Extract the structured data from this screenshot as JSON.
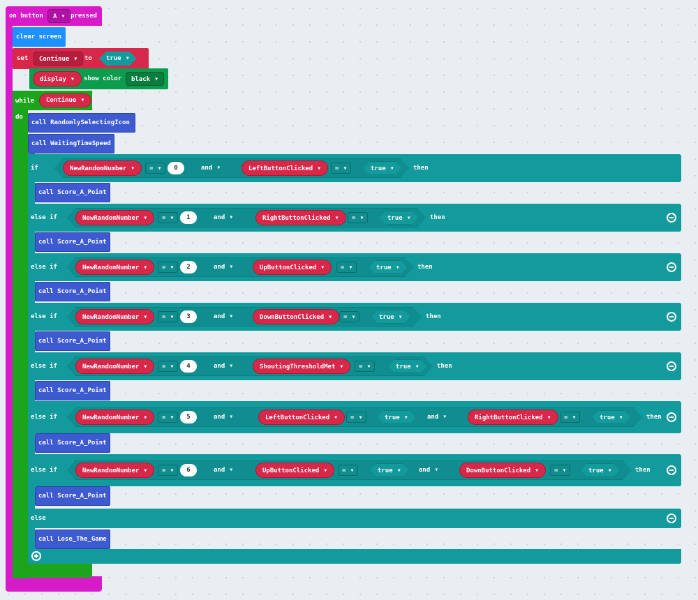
{
  "colors": {
    "event": "#d81bc8",
    "basic": "#1e90ff",
    "variable": "#d8284a",
    "led_strip": "#0d9c4e",
    "loop": "#1ca51c",
    "logic": "#129a9c",
    "function": "#3d5ad1"
  },
  "event": {
    "prefix": "on button",
    "button": "A",
    "suffix": "pressed"
  },
  "clear": {
    "label": "clear screen"
  },
  "set": {
    "label": "set",
    "variable": "Continue",
    "to": "to",
    "value": "true"
  },
  "display": {
    "target": "display",
    "action": "show color",
    "color": "black"
  },
  "loop": {
    "while": "while",
    "condition": "Continue",
    "do": "do"
  },
  "calls": {
    "first": "call RandomlySelectingIcon",
    "second": "call WaitingTimeSpeed",
    "score": "call Score_A_Point",
    "lose": "call Lose_The_Game"
  },
  "ifblock": {
    "if": "if",
    "else_if": "else if",
    "else": "else",
    "then": "then",
    "and": "and",
    "eq": "=",
    "true": "true",
    "var": "NewRandomNumber",
    "rows": [
      {
        "num": "0",
        "btn1": "LeftButtonClicked",
        "btn2": ""
      },
      {
        "num": "1",
        "btn1": "RightButtonClicked",
        "btn2": ""
      },
      {
        "num": "2",
        "btn1": "UpButtonClicked",
        "btn2": ""
      },
      {
        "num": "3",
        "btn1": "DownButtonClicked",
        "btn2": ""
      },
      {
        "num": "4",
        "btn1": "ShoutingThresholdMet",
        "btn2": ""
      },
      {
        "num": "5",
        "btn1": "LeftButtonClicked",
        "btn2": "RightButtonClicked"
      },
      {
        "num": "6",
        "btn1": "UpButtonClicked",
        "btn2": "DownButtonClicked"
      }
    ]
  }
}
